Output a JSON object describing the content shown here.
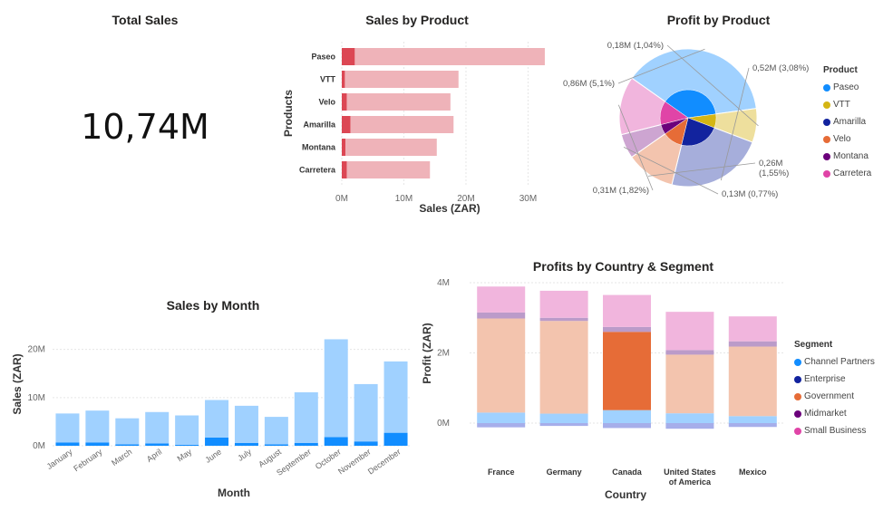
{
  "total_sales_card": {
    "title": "Total Sales",
    "value": "10,74M"
  },
  "chart_data": [
    {
      "id": "sales_by_product",
      "type": "bar",
      "orientation": "horizontal",
      "title": "Sales by Product",
      "xlabel": "Sales (ZAR)",
      "ylabel": "Products",
      "categories": [
        "Paseo",
        "VTT",
        "Velo",
        "Amarilla",
        "Montana",
        "Carretera"
      ],
      "series": [
        {
          "values": [
            2.1,
            0.5,
            0.8,
            1.4,
            0.6,
            0.8
          ],
          "color": "#DC4754"
        },
        {
          "values": [
            30.6,
            18.3,
            16.7,
            16.6,
            14.7,
            13.4
          ],
          "color": "#EFB3B9"
        }
      ],
      "stacked": true,
      "xlim": [
        0,
        33
      ],
      "xticks": [
        0,
        10,
        20,
        30
      ],
      "xtick_labels": [
        "0M",
        "10M",
        "20M",
        "30M"
      ],
      "grid": true
    },
    {
      "id": "profit_by_product",
      "type": "pie",
      "title": "Profit by Product",
      "legend_title": "Product",
      "legend_position": "right",
      "categories": [
        "Paseo",
        "VTT",
        "Amarilla",
        "Velo",
        "Montana",
        "Carretera"
      ],
      "colors": [
        "#118DFF",
        "#D4B514",
        "#12239E",
        "#E66C37",
        "#6B007B",
        "#E044A7"
      ],
      "outer_values": [
        0.86,
        0.18,
        0.52,
        0.26,
        0.13,
        0.31
      ],
      "inner_values": [
        0.86,
        0.18,
        0.52,
        0.26,
        0.13,
        0.31
      ],
      "slice_labels": [
        "0,86M (5,1%)",
        "0,18M (1,04%)",
        "0,52M (3,08%)",
        "0,26M (1,55%)",
        "0,13M (0,77%)",
        "0,31M (1,82%)"
      ]
    },
    {
      "id": "sales_by_month",
      "type": "bar",
      "title": "Sales by Month",
      "xlabel": "Month",
      "ylabel": "Sales (ZAR)",
      "categories": [
        "January",
        "February",
        "March",
        "April",
        "May",
        "June",
        "July",
        "August",
        "September",
        "October",
        "November",
        "December"
      ],
      "series": [
        {
          "values": [
            0.7,
            0.7,
            0.3,
            0.5,
            0.2,
            1.7,
            0.6,
            0.3,
            0.6,
            1.8,
            0.9,
            2.7
          ],
          "color": "#118DFF"
        },
        {
          "values": [
            6.0,
            6.6,
            5.4,
            6.5,
            6.1,
            7.8,
            7.7,
            5.7,
            10.5,
            20.3,
            11.9,
            14.8
          ],
          "color": "#A0D1FF"
        }
      ],
      "stacked": true,
      "ylim": [
        0,
        22
      ],
      "yticks": [
        0,
        10,
        20
      ],
      "ytick_labels": [
        "0M",
        "10M",
        "20M"
      ],
      "grid": true
    },
    {
      "id": "profits_by_country_segment",
      "type": "bar",
      "title": "Profits by Country & Segment",
      "xlabel": "Country",
      "ylabel": "Profit (ZAR)",
      "categories": [
        "France",
        "Germany",
        "Canada",
        "United States\nof America",
        "Mexico"
      ],
      "legend_title": "Segment",
      "legend_position": "right",
      "legend": [
        {
          "name": "Channel Partners",
          "color": "#118DFF"
        },
        {
          "name": "Enterprise",
          "color": "#12239E"
        },
        {
          "name": "Government",
          "color": "#E66C37"
        },
        {
          "name": "Midmarket",
          "color": "#6B007B"
        },
        {
          "name": "Small Business",
          "color": "#E044A7"
        }
      ],
      "ylim": [
        -0.3,
        4.2
      ],
      "yticks": [
        0,
        2,
        4
      ],
      "ytick_labels": [
        "0M",
        "2M",
        "4M"
      ],
      "stacks": [
        {
          "country": "France",
          "segments": [
            {
              "value": -0.12,
              "color": "#A6AEEA"
            },
            {
              "value": 0.3,
              "color": "#A0D1FF"
            },
            {
              "value": 2.68,
              "color": "#F3C4AE"
            },
            {
              "value": 0.17,
              "color": "#BB9BC9"
            },
            {
              "value": 0.74,
              "color": "#F1B5DD"
            }
          ]
        },
        {
          "country": "Germany",
          "segments": [
            {
              "value": -0.08,
              "color": "#A6AEEA"
            },
            {
              "value": 0.27,
              "color": "#A0D1FF"
            },
            {
              "value": 2.64,
              "color": "#F3C4AE"
            },
            {
              "value": 0.09,
              "color": "#BB9BC9"
            },
            {
              "value": 0.77,
              "color": "#F1B5DD"
            }
          ]
        },
        {
          "country": "Canada",
          "segments": [
            {
              "value": -0.14,
              "color": "#A6AEEA"
            },
            {
              "value": 0.37,
              "color": "#A0D1FF"
            },
            {
              "value": 2.23,
              "color": "#E66C37"
            },
            {
              "value": 0.14,
              "color": "#BB9BC9"
            },
            {
              "value": 0.91,
              "color": "#F1B5DD"
            }
          ]
        },
        {
          "country": "United States\nof America",
          "segments": [
            {
              "value": -0.16,
              "color": "#A6AEEA"
            },
            {
              "value": 0.28,
              "color": "#A0D1FF"
            },
            {
              "value": 1.67,
              "color": "#F3C4AE"
            },
            {
              "value": 0.13,
              "color": "#BB9BC9"
            },
            {
              "value": 1.09,
              "color": "#F1B5DD"
            }
          ]
        },
        {
          "country": "Mexico",
          "segments": [
            {
              "value": -0.11,
              "color": "#A6AEEA"
            },
            {
              "value": 0.2,
              "color": "#A0D1FF"
            },
            {
              "value": 1.98,
              "color": "#F3C4AE"
            },
            {
              "value": 0.15,
              "color": "#BB9BC9"
            },
            {
              "value": 0.71,
              "color": "#F1B5DD"
            }
          ]
        }
      ]
    }
  ]
}
